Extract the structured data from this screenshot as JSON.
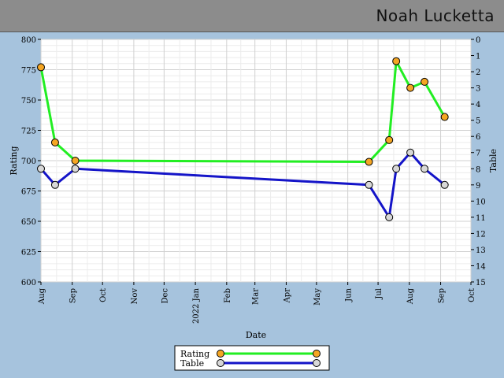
{
  "header": {
    "player_name": "Noah Lucketta"
  },
  "chart_data": {
    "type": "line",
    "xlabel": "Date",
    "ylabel_left": "Rating",
    "ylabel_right": "Table",
    "x_ticks": [
      "Aug",
      "Sep",
      "Oct",
      "Nov",
      "Dec",
      "2022 Jan",
      "Feb",
      "Mar",
      "Apr",
      "May",
      "Jun",
      "Jul",
      "Aug",
      "Sep",
      "Oct"
    ],
    "x_tick_dates": [
      "2021-08-01",
      "2021-09-01",
      "2021-10-01",
      "2021-11-01",
      "2021-12-01",
      "2022-01-01",
      "2022-02-01",
      "2022-03-01",
      "2022-04-01",
      "2022-05-01",
      "2022-06-01",
      "2022-07-01",
      "2022-08-01",
      "2022-09-01",
      "2022-10-01"
    ],
    "ylim_left": [
      600,
      800
    ],
    "yticks_left": [
      600,
      625,
      650,
      675,
      700,
      725,
      750,
      775,
      800
    ],
    "ylim_right": [
      15,
      0
    ],
    "yticks_right": [
      0,
      1,
      2,
      3,
      4,
      5,
      6,
      7,
      8,
      9,
      10,
      11,
      12,
      13,
      14,
      15
    ],
    "grid": true,
    "legend_position": "bottom-center",
    "series": [
      {
        "name": "Rating",
        "axis": "left",
        "line_color": "#22ee22",
        "marker_color": "#f5a623",
        "points": [
          {
            "x": "2021-08-01",
            "y": 777
          },
          {
            "x": "2021-08-15",
            "y": 715
          },
          {
            "x": "2021-09-04",
            "y": 700
          },
          {
            "x": "2022-06-22",
            "y": 699
          },
          {
            "x": "2022-07-12",
            "y": 717
          },
          {
            "x": "2022-07-19",
            "y": 782
          },
          {
            "x": "2022-08-02",
            "y": 760
          },
          {
            "x": "2022-08-16",
            "y": 765
          },
          {
            "x": "2022-09-05",
            "y": 736
          }
        ]
      },
      {
        "name": "Table",
        "axis": "right",
        "line_color": "#1414c8",
        "marker_color": "#d8d8d8",
        "points": [
          {
            "x": "2021-08-01",
            "y": 8
          },
          {
            "x": "2021-08-15",
            "y": 9
          },
          {
            "x": "2021-09-04",
            "y": 8
          },
          {
            "x": "2022-06-22",
            "y": 9
          },
          {
            "x": "2022-07-12",
            "y": 11
          },
          {
            "x": "2022-07-19",
            "y": 8
          },
          {
            "x": "2022-08-02",
            "y": 7
          },
          {
            "x": "2022-08-16",
            "y": 8
          },
          {
            "x": "2022-09-05",
            "y": 9
          }
        ]
      }
    ]
  }
}
